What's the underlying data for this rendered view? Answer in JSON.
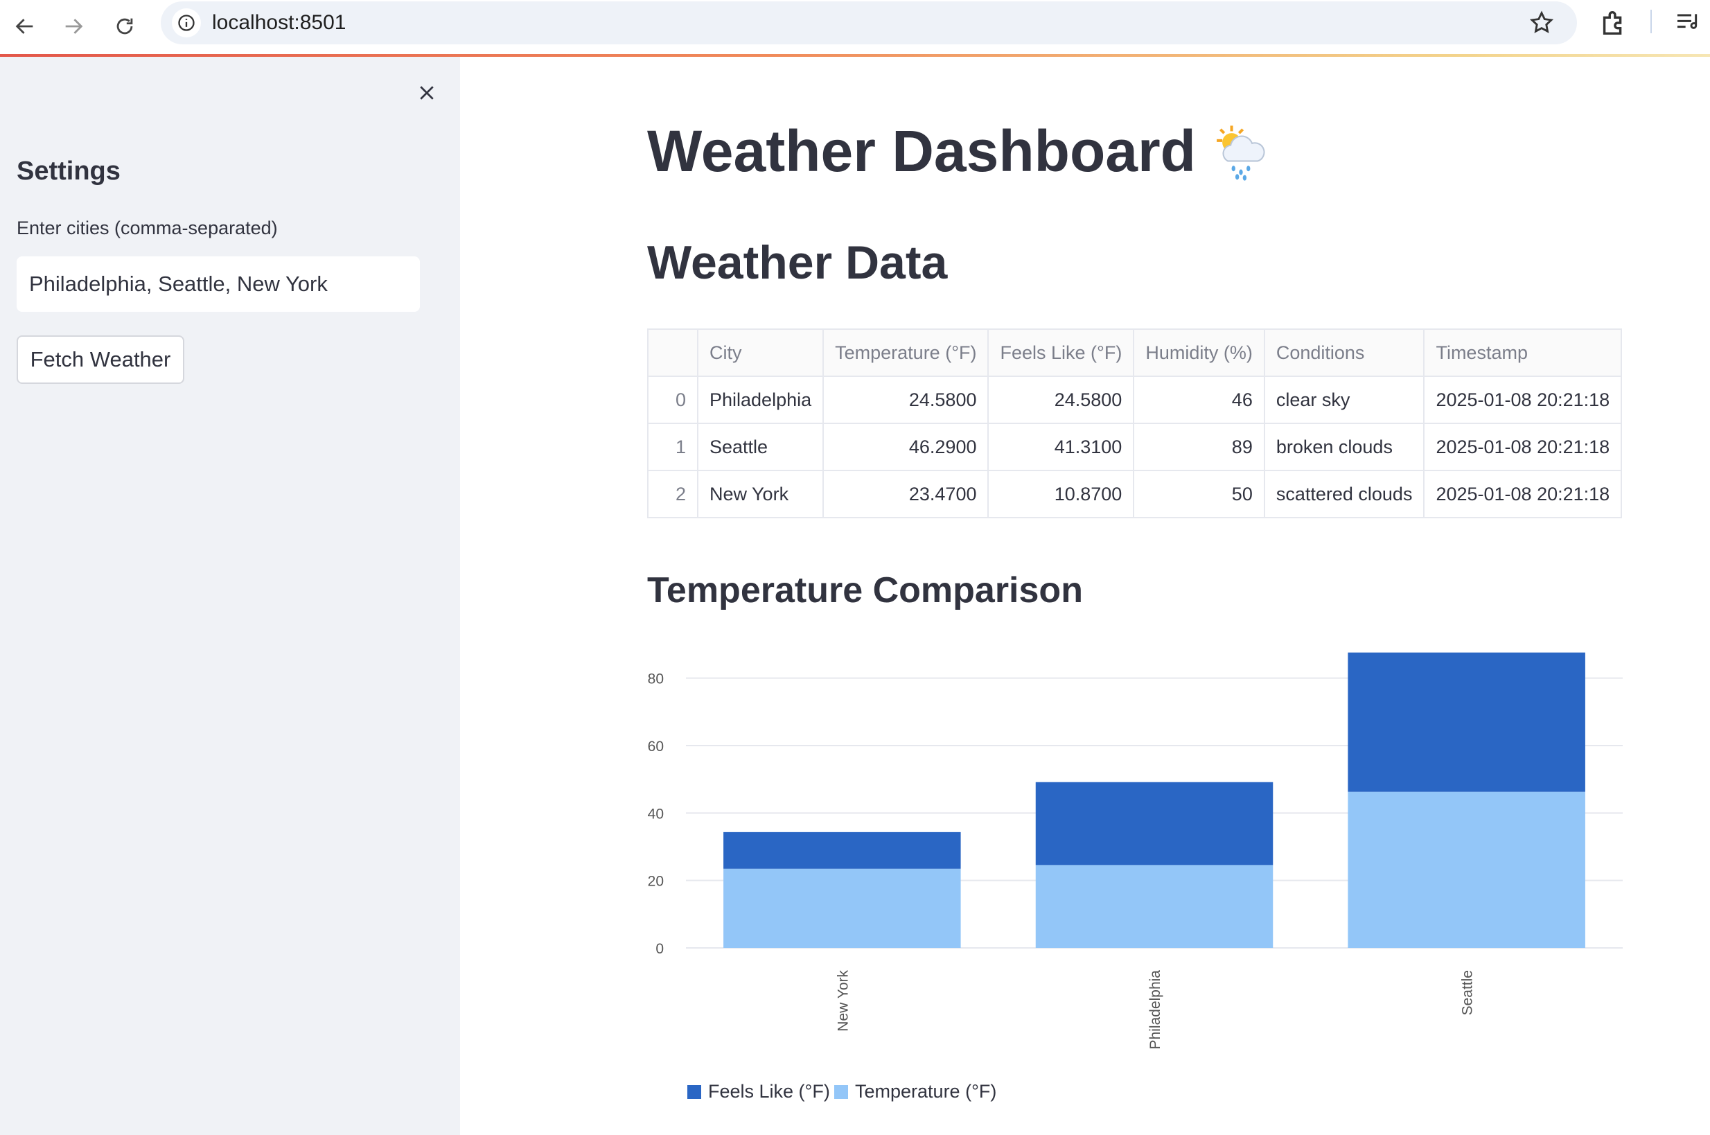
{
  "browser": {
    "url": "localhost:8501",
    "icons": [
      "back-icon",
      "forward-icon",
      "reload-icon",
      "info-icon",
      "star-icon",
      "extensions-icon",
      "media-icon"
    ]
  },
  "sidebar": {
    "title": "Settings",
    "input_label": "Enter cities (comma-separated)",
    "input_value": "Philadelphia, Seattle, New York",
    "button_label": "Fetch Weather"
  },
  "main": {
    "title": "Weather Dashboard",
    "title_icon": "sun-cloud-rain-icon",
    "data_heading": "Weather Data",
    "chart_heading": "Temperature Comparison"
  },
  "table": {
    "columns": [
      "",
      "City",
      "Temperature (°F)",
      "Feels Like (°F)",
      "Humidity (%)",
      "Conditions",
      "Timestamp"
    ],
    "rows": [
      [
        "0",
        "Philadelphia",
        "24.5800",
        "24.5800",
        "46",
        "clear sky",
        "2025-01-08 20:21:18"
      ],
      [
        "1",
        "Seattle",
        "46.2900",
        "41.3100",
        "89",
        "broken clouds",
        "2025-01-08 20:21:18"
      ],
      [
        "2",
        "New York",
        "23.4700",
        "10.8700",
        "50",
        "scattered clouds",
        "2025-01-08 20:21:18"
      ]
    ]
  },
  "colors": {
    "feels_like": "#2a66c4",
    "temperature": "#93c6f8",
    "accent_line": "#e3574a"
  },
  "chart_data": {
    "type": "bar",
    "stacked": true,
    "title": "",
    "xlabel": "",
    "ylabel": "",
    "categories": [
      "New York",
      "Philadelphia",
      "Seattle"
    ],
    "series": [
      {
        "name": "Temperature (°F)",
        "values": [
          23.47,
          24.58,
          46.29
        ]
      },
      {
        "name": "Feels Like (°F)",
        "values": [
          10.87,
          24.58,
          41.31
        ]
      }
    ],
    "yticks": [
      0,
      20,
      40,
      60,
      80
    ],
    "ylim": [
      0,
      90
    ],
    "legend": [
      "Feels Like (°F)",
      "Temperature (°F)"
    ],
    "legend_position": "bottom-left",
    "grid": true
  }
}
